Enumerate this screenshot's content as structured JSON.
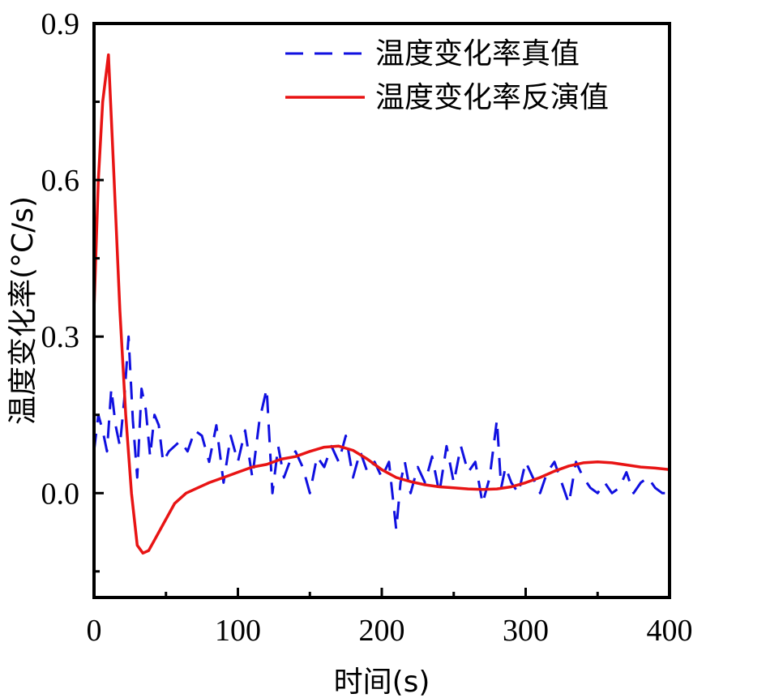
{
  "chart_data": {
    "type": "line",
    "xlabel": "时间(s)",
    "ylabel": "温度变化率(°C/s)",
    "xlim": [
      0,
      400
    ],
    "ylim": [
      -0.2,
      0.9
    ],
    "xticks": [
      0,
      100,
      200,
      300,
      400
    ],
    "xtick_labels": [
      "0",
      "100",
      "200",
      "300",
      "400"
    ],
    "yticks": [
      0.0,
      0.3,
      0.6,
      0.9
    ],
    "ytick_labels": [
      "0.0",
      "0.3",
      "0.6",
      "0.9"
    ],
    "grid": false,
    "legend_position": "top-right",
    "series": [
      {
        "name": "温度变化率真值",
        "color": "#1010e0",
        "style": "dashed",
        "x": [
          0,
          3,
          6,
          9,
          12,
          15,
          18,
          21,
          24,
          27,
          30,
          33,
          36,
          39,
          42,
          45,
          48,
          52,
          56,
          60,
          65,
          70,
          75,
          80,
          85,
          90,
          95,
          100,
          105,
          110,
          115,
          120,
          124,
          128,
          132,
          136,
          140,
          145,
          150,
          155,
          160,
          165,
          170,
          175,
          180,
          185,
          190,
          195,
          200,
          205,
          210,
          213,
          216,
          220,
          225,
          230,
          235,
          240,
          245,
          250,
          255,
          260,
          265,
          270,
          275,
          280,
          283,
          286,
          290,
          295,
          300,
          305,
          310,
          315,
          320,
          325,
          330,
          335,
          340,
          345,
          350,
          355,
          360,
          365,
          370,
          375,
          380,
          385,
          390,
          395,
          400
        ],
        "y": [
          0.08,
          0.15,
          0.12,
          0.08,
          0.2,
          0.13,
          0.09,
          0.18,
          0.3,
          0.14,
          0.03,
          0.2,
          0.16,
          0.07,
          0.15,
          0.13,
          0.06,
          0.08,
          0.09,
          0.1,
          0.08,
          0.12,
          0.11,
          0.06,
          0.13,
          0.02,
          0.11,
          0.06,
          0.12,
          0.03,
          0.14,
          0.2,
          0.0,
          0.09,
          0.03,
          0.06,
          0.08,
          0.05,
          0.0,
          0.07,
          0.05,
          0.09,
          0.06,
          0.11,
          0.03,
          0.08,
          0.04,
          0.06,
          0.03,
          0.06,
          -0.07,
          0.02,
          0.06,
          0.0,
          0.05,
          0.02,
          0.07,
          0.0,
          0.09,
          0.02,
          0.09,
          0.04,
          0.06,
          -0.02,
          0.03,
          0.14,
          0.01,
          0.05,
          0.02,
          0.0,
          0.06,
          0.03,
          0.0,
          0.04,
          0.06,
          0.02,
          -0.02,
          0.06,
          0.03,
          0.01,
          0.0,
          0.02,
          0.0,
          0.01,
          0.04,
          0.0,
          0.02,
          0.03,
          0.01,
          0.0,
          0.0
        ]
      },
      {
        "name": "温度变化率反演值",
        "color": "#e81414",
        "style": "solid",
        "x": [
          0,
          3,
          6,
          10,
          14,
          18,
          22,
          26,
          30,
          34,
          38,
          42,
          48,
          56,
          64,
          72,
          80,
          90,
          100,
          110,
          120,
          130,
          140,
          150,
          160,
          170,
          180,
          190,
          200,
          210,
          220,
          230,
          240,
          250,
          260,
          270,
          280,
          290,
          300,
          310,
          320,
          330,
          340,
          350,
          360,
          370,
          380,
          390,
          400
        ],
        "y": [
          0.35,
          0.6,
          0.75,
          0.84,
          0.6,
          0.35,
          0.15,
          0.0,
          -0.1,
          -0.115,
          -0.11,
          -0.09,
          -0.06,
          -0.02,
          0.0,
          0.01,
          0.02,
          0.03,
          0.04,
          0.05,
          0.055,
          0.065,
          0.07,
          0.08,
          0.088,
          0.09,
          0.082,
          0.065,
          0.045,
          0.03,
          0.022,
          0.016,
          0.012,
          0.01,
          0.008,
          0.007,
          0.008,
          0.012,
          0.02,
          0.03,
          0.042,
          0.052,
          0.058,
          0.06,
          0.058,
          0.054,
          0.05,
          0.048,
          0.045
        ]
      }
    ]
  }
}
